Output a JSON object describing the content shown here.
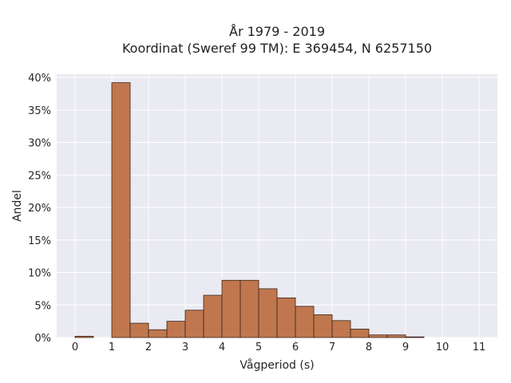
{
  "chart_data": {
    "type": "bar",
    "title_lines": [
      "År 1979 - 2019",
      "Koordinat (Sweref 99 TM): E 369454, N 6257150"
    ],
    "xlabel": "Vågperiod (s)",
    "ylabel": "Andel",
    "xlim": [
      -0.5,
      11.5
    ],
    "ylim": [
      0,
      40.5
    ],
    "x_ticks": [
      0,
      1,
      2,
      3,
      4,
      5,
      6,
      7,
      8,
      9,
      10,
      11
    ],
    "y_ticks": [
      0,
      5,
      10,
      15,
      20,
      25,
      30,
      35,
      40
    ],
    "y_tick_labels": [
      "0%",
      "5%",
      "10%",
      "15%",
      "20%",
      "25%",
      "30%",
      "35%",
      "40%"
    ],
    "bin_width": 0.5,
    "bins": [
      {
        "x0": 0.0,
        "value": 0.2
      },
      {
        "x0": 0.5,
        "value": 0.0
      },
      {
        "x0": 1.0,
        "value": 39.2
      },
      {
        "x0": 1.5,
        "value": 2.2
      },
      {
        "x0": 2.0,
        "value": 1.2
      },
      {
        "x0": 2.5,
        "value": 2.5
      },
      {
        "x0": 3.0,
        "value": 4.2
      },
      {
        "x0": 3.5,
        "value": 6.5
      },
      {
        "x0": 4.0,
        "value": 8.8
      },
      {
        "x0": 4.5,
        "value": 8.8
      },
      {
        "x0": 5.0,
        "value": 7.5
      },
      {
        "x0": 5.5,
        "value": 6.1
      },
      {
        "x0": 6.0,
        "value": 4.8
      },
      {
        "x0": 6.5,
        "value": 3.5
      },
      {
        "x0": 7.0,
        "value": 2.6
      },
      {
        "x0": 7.5,
        "value": 1.3
      },
      {
        "x0": 8.0,
        "value": 0.4
      },
      {
        "x0": 8.5,
        "value": 0.4
      },
      {
        "x0": 9.0,
        "value": 0.1
      }
    ],
    "grid": true,
    "colors": {
      "bar_fill": "#c0774e",
      "bar_edge": "#3a2418",
      "plot_background": "#eaeaf2",
      "grid": "#ffffff"
    }
  }
}
